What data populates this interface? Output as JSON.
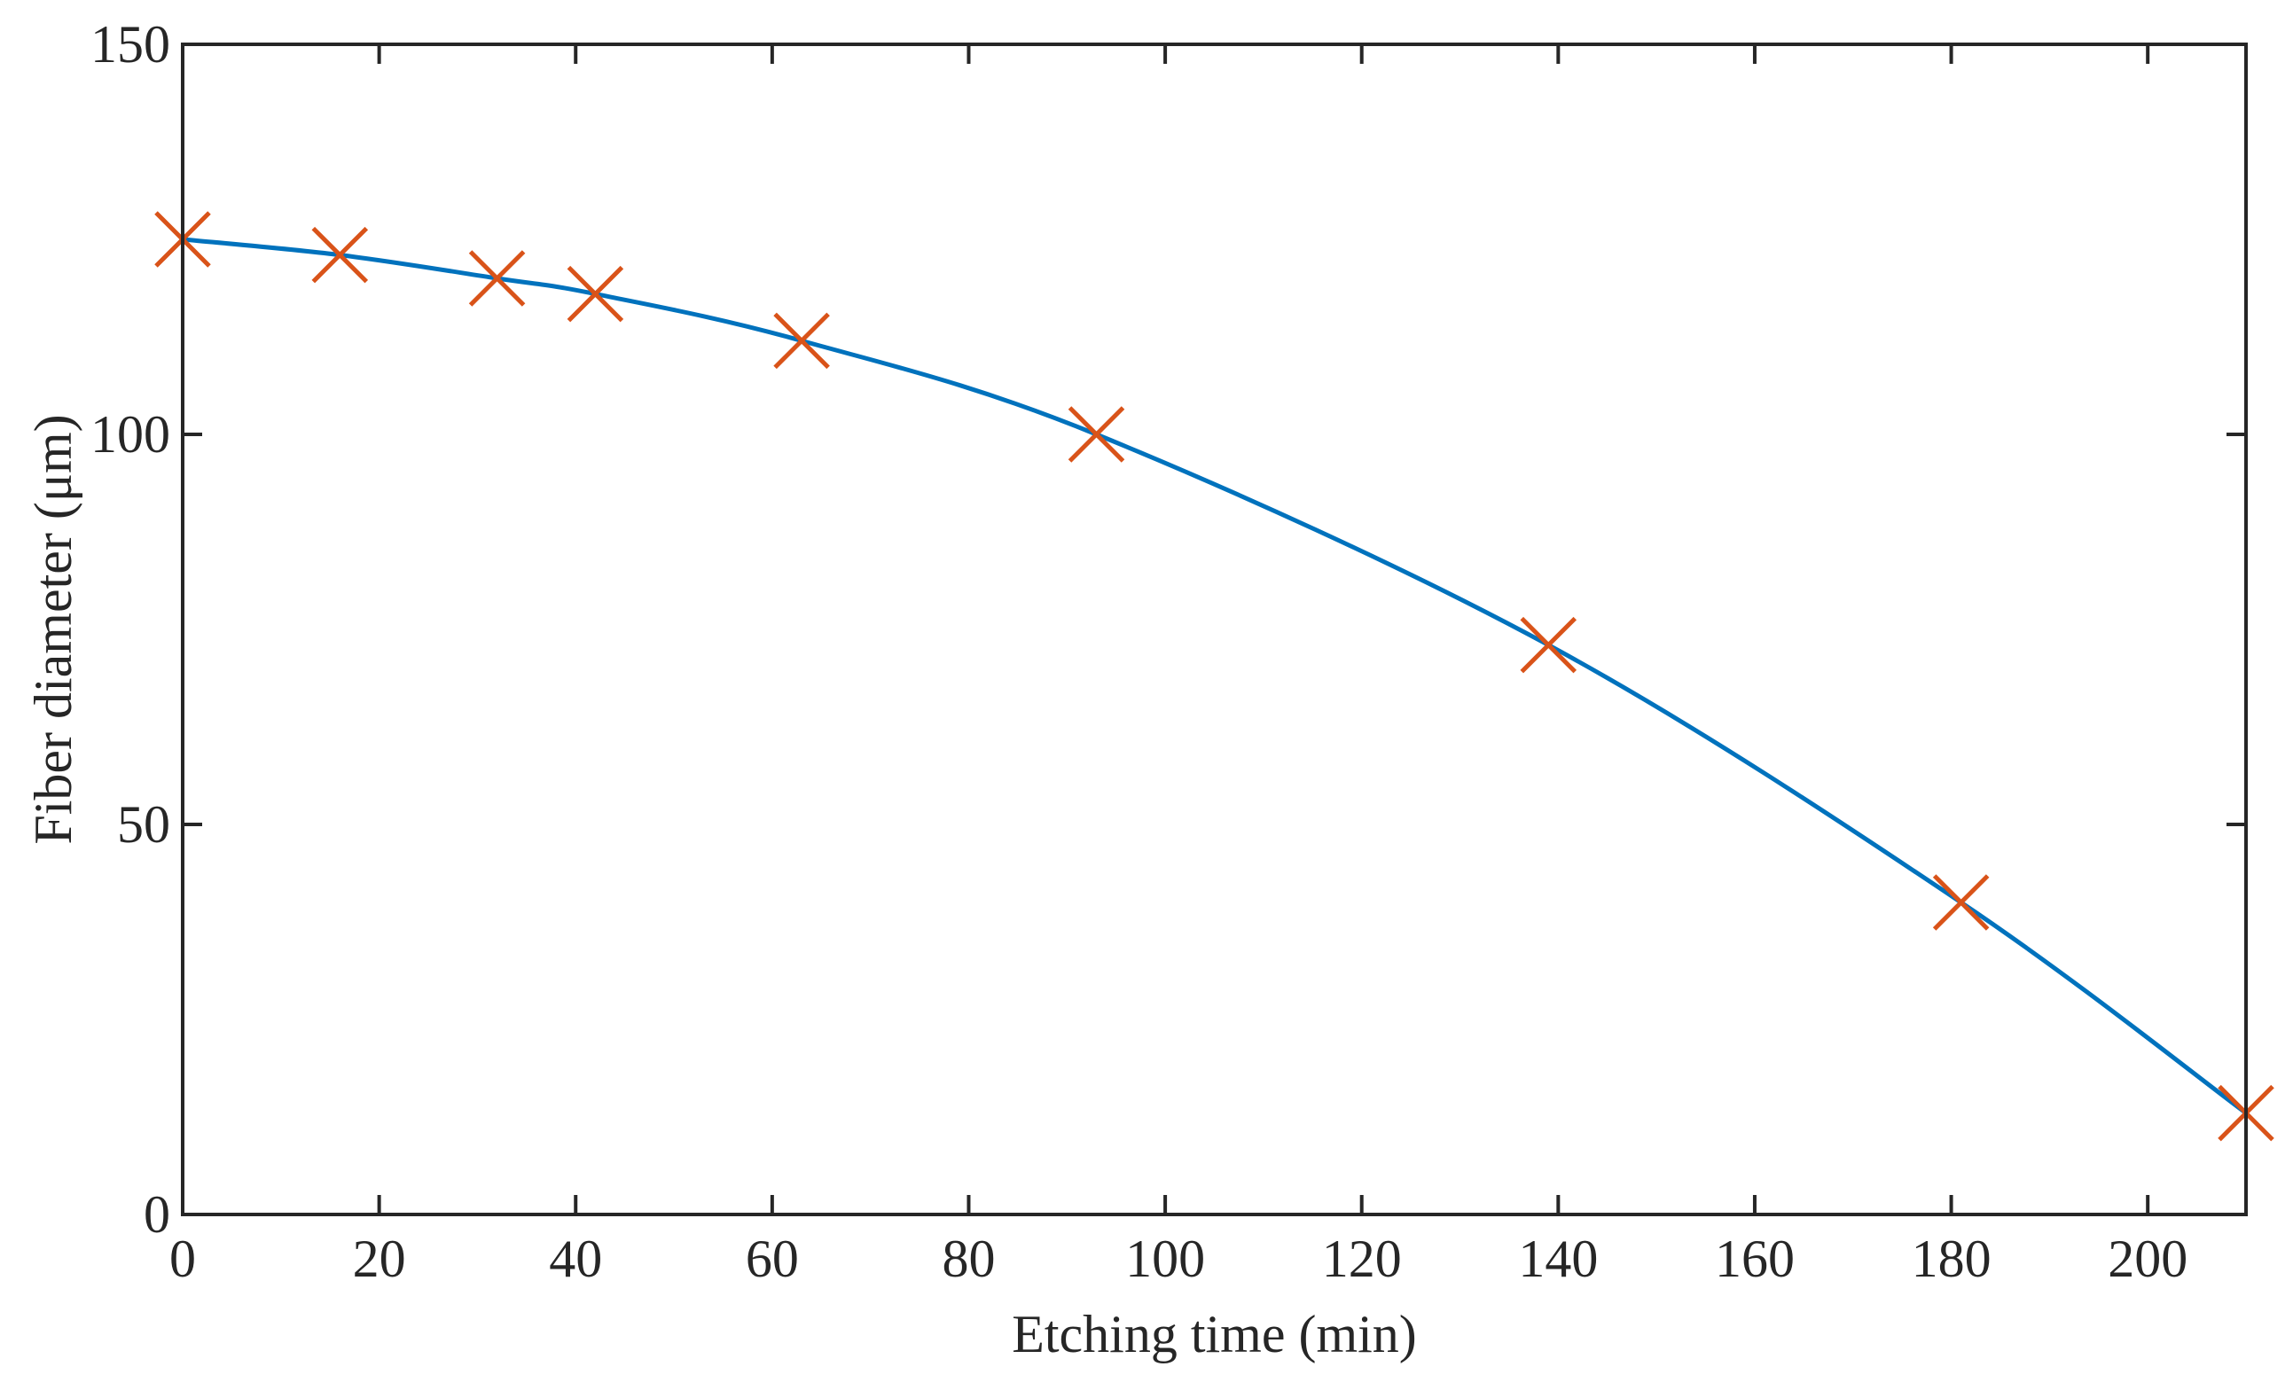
{
  "chart_data": {
    "type": "line",
    "title": "",
    "xlabel": "Etching time (min)",
    "ylabel": "Fiber diameter (μm)",
    "xlim": [
      0,
      210
    ],
    "ylim": [
      0,
      150
    ],
    "xticks": [
      0,
      20,
      40,
      60,
      80,
      100,
      120,
      140,
      160,
      180,
      200
    ],
    "yticks": [
      0,
      50,
      100,
      150
    ],
    "grid": false,
    "legend": "none",
    "series": [
      {
        "kind": "line",
        "color": "#0072BD",
        "x": [
          0,
          16,
          32,
          42,
          63,
          93,
          139,
          181,
          210
        ],
        "y": [
          125,
          123,
          120,
          118,
          112,
          100,
          73,
          40,
          13
        ]
      },
      {
        "kind": "markers",
        "marker": "x",
        "color": "#D95319",
        "x": [
          0,
          16,
          32,
          42,
          63,
          93,
          139,
          181,
          210
        ],
        "y": [
          125,
          123,
          120,
          118,
          112,
          100,
          73,
          40,
          13
        ]
      }
    ]
  }
}
